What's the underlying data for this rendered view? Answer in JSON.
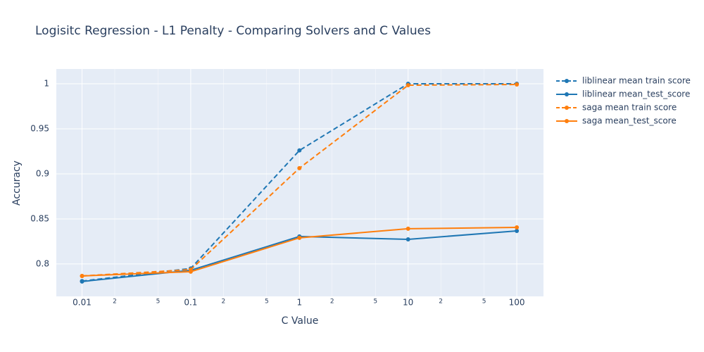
{
  "chart_data": {
    "type": "line",
    "title": "Logisitc Regression - L1 Penalty - Comparing Solvers and C Values",
    "x_label": "C Value",
    "y_label": "Accuracy",
    "x": [
      0.01,
      0.1,
      1,
      10,
      100
    ],
    "x_log": true,
    "xlim": [
      0.0058,
      176
    ],
    "xticks": [
      0.01,
      {
        "value": 0.02,
        "label": "2"
      },
      {
        "value": 0.05,
        "label": "5"
      },
      0.1,
      {
        "value": 0.2,
        "label": "2"
      },
      {
        "value": 0.5,
        "label": "5"
      },
      1,
      {
        "value": 2,
        "label": "2"
      },
      {
        "value": 5,
        "label": "5"
      },
      10,
      {
        "value": 20,
        "label": "2"
      },
      {
        "value": 50,
        "label": "5"
      },
      100
    ],
    "ylim": [
      0.764,
      1.0164
    ],
    "yticks": [
      0.8,
      0.85,
      0.9,
      0.95,
      1
    ],
    "grid": true,
    "legend": "right",
    "series": [
      {
        "name": "liblinear mean train score",
        "color": "#1f77b4",
        "dash": true,
        "values": [
          0.781,
          0.795,
          0.926,
          1.0,
          1.0
        ]
      },
      {
        "name": "liblinear mean_test_score",
        "color": "#1f77b4",
        "dash": false,
        "values": [
          0.7805,
          0.793,
          0.8305,
          0.8273,
          0.8367
        ]
      },
      {
        "name": "saga mean train score",
        "color": "#ff7f0e",
        "dash": true,
        "values": [
          0.7867,
          0.7937,
          0.9063,
          0.9984,
          0.9992
        ]
      },
      {
        "name": "saga mean_test_score",
        "color": "#ff7f0e",
        "dash": false,
        "values": [
          0.7867,
          0.7914,
          0.829,
          0.8391,
          0.8406
        ]
      }
    ]
  }
}
